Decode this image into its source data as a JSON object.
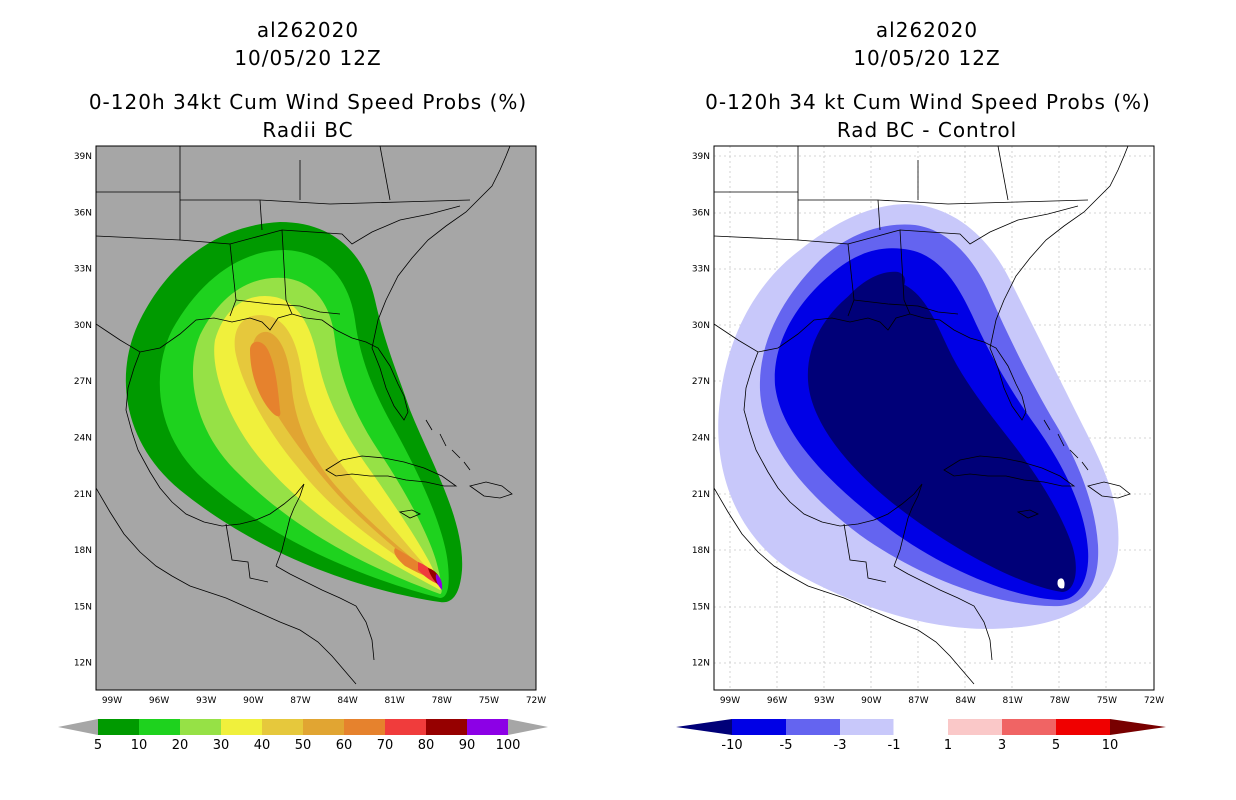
{
  "left_panel": {
    "storm_id": "al262020",
    "date": "10/05/20 12Z",
    "title": "0-120h 34kt Cum Wind Speed Probs (%)",
    "subtitle": "Radii BC",
    "colorbar": {
      "labels": [
        "5",
        "10",
        "20",
        "30",
        "40",
        "50",
        "60",
        "70",
        "80",
        "90",
        "100"
      ],
      "colors": [
        "#009a00",
        "#1ed21e",
        "#96e146",
        "#f0f03c",
        "#e6c83c",
        "#e1a532",
        "#e6822d",
        "#f03c3c",
        "#960000",
        "#8c00e6"
      ],
      "background_color": "#a6a6a6",
      "under_color": "#a6a6a6",
      "over_color": "#a6a6a6"
    }
  },
  "right_panel": {
    "storm_id": "al262020",
    "date": "10/05/20 12Z",
    "title": "0-120h 34 kt Cum Wind Speed Probs (%)",
    "subtitle": "Rad BC - Control",
    "colorbar": {
      "labels": [
        "-10",
        "-5",
        "-3",
        "-1",
        "1",
        "3",
        "5",
        "10"
      ],
      "colors": [
        "#0000e6",
        "#6464f0",
        "#c8c8fa",
        "#ffffff",
        "#fac8c8",
        "#f06464",
        "#f00000"
      ],
      "under_color": "#000078",
      "over_color": "#780000"
    }
  },
  "axes": {
    "lat_labels": [
      "39N",
      "36N",
      "33N",
      "30N",
      "27N",
      "24N",
      "21N",
      "18N",
      "15N",
      "12N"
    ],
    "lon_labels": [
      "99W",
      "96W",
      "93W",
      "90W",
      "87W",
      "84W",
      "81W",
      "78W",
      "75W",
      "72W"
    ]
  }
}
